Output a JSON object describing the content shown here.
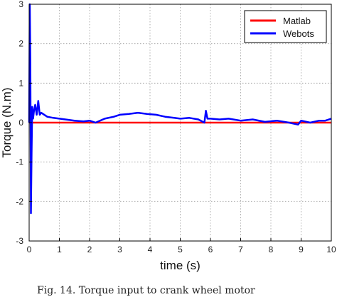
{
  "chart_data": {
    "type": "line",
    "title": "",
    "xlabel": "time (s)",
    "ylabel": "Torque (N.m)",
    "xlim": [
      0,
      10
    ],
    "ylim": [
      -3,
      3
    ],
    "xticks": [
      "0",
      "1",
      "2",
      "3",
      "4",
      "5",
      "6",
      "7",
      "8",
      "9",
      "10"
    ],
    "yticks": [
      "3",
      "2",
      "1",
      "0",
      "-1",
      "-2",
      "-3"
    ],
    "grid": true,
    "legend_position": "top-right",
    "series": [
      {
        "name": "Matlab",
        "color": "#ff0000",
        "x": [
          0,
          10
        ],
        "y": [
          0,
          0
        ]
      },
      {
        "name": "Webots",
        "color": "#0000ff",
        "x": [
          0.0,
          0.02,
          0.04,
          0.06,
          0.08,
          0.1,
          0.13,
          0.16,
          0.2,
          0.25,
          0.3,
          0.35,
          0.4,
          0.5,
          0.6,
          0.8,
          1.0,
          1.2,
          1.5,
          1.8,
          2.0,
          2.2,
          2.5,
          2.8,
          3.0,
          3.3,
          3.6,
          3.9,
          4.2,
          4.5,
          4.8,
          5.0,
          5.3,
          5.6,
          5.8,
          5.85,
          5.9,
          6.0,
          6.3,
          6.6,
          7.0,
          7.4,
          7.8,
          8.2,
          8.6,
          8.9,
          9.0,
          9.3,
          9.6,
          9.8,
          10.0
        ],
        "y": [
          0.0,
          3.0,
          1.5,
          -2.3,
          -0.8,
          0.4,
          0.1,
          0.3,
          0.45,
          0.2,
          0.55,
          0.2,
          0.25,
          0.2,
          0.15,
          0.12,
          0.1,
          0.08,
          0.05,
          0.03,
          0.05,
          0.0,
          0.1,
          0.15,
          0.2,
          0.22,
          0.25,
          0.22,
          0.2,
          0.15,
          0.12,
          0.1,
          0.12,
          0.08,
          0.0,
          0.3,
          0.1,
          0.1,
          0.08,
          0.1,
          0.05,
          0.08,
          0.02,
          0.05,
          0.0,
          -0.05,
          0.05,
          0.0,
          0.05,
          0.05,
          0.1
        ]
      }
    ]
  },
  "caption": "Fig. 14. Torque input to crank wheel motor"
}
